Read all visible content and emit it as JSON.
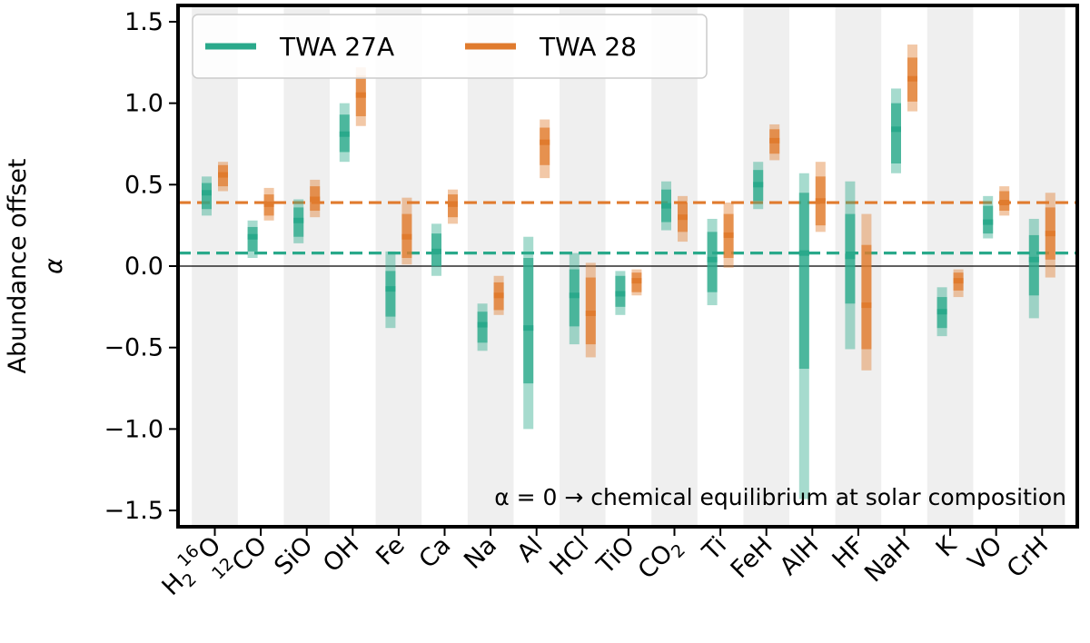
{
  "chart_data": {
    "type": "range-bar",
    "ylabel": "Abundance offset",
    "ylabel_symbol": "α",
    "ylim": [
      -1.6,
      1.6
    ],
    "yticks": [
      {
        "v": 1.5,
        "label": "1.5"
      },
      {
        "v": 1.0,
        "label": "1.0"
      },
      {
        "v": 0.5,
        "label": "0.5"
      },
      {
        "v": 0.0,
        "label": "0.0"
      },
      {
        "v": -0.5,
        "label": "−0.5"
      },
      {
        "v": -1.0,
        "label": "−1.0"
      },
      {
        "v": -1.5,
        "label": "−1.5"
      }
    ],
    "categories": [
      {
        "main": "H",
        "sub": "2",
        "sup": "16",
        "tail": "O"
      },
      {
        "main": "",
        "sub": "",
        "sup": "12",
        "tail": "CO"
      },
      {
        "main": "SiO"
      },
      {
        "main": "OH"
      },
      {
        "main": "Fe"
      },
      {
        "main": "Ca"
      },
      {
        "main": "Na"
      },
      {
        "main": "Al"
      },
      {
        "main": "HCl"
      },
      {
        "main": "TiO"
      },
      {
        "main": "CO",
        "sub": "2"
      },
      {
        "main": "Ti"
      },
      {
        "main": "FeH"
      },
      {
        "main": "AlH"
      },
      {
        "main": "HF"
      },
      {
        "main": "NaH"
      },
      {
        "main": "K"
      },
      {
        "main": "VO"
      },
      {
        "main": "CrH"
      }
    ],
    "series": [
      {
        "name": "TWA 27A",
        "color": "#2aa98b",
        "mean_line": 0.08,
        "ranges": [
          [
            0.31,
            0.35,
            0.45,
            0.51,
            0.55
          ],
          [
            0.05,
            0.09,
            0.18,
            0.24,
            0.28
          ],
          [
            0.14,
            0.18,
            0.28,
            0.36,
            0.41
          ],
          [
            0.64,
            0.7,
            0.81,
            0.93,
            1.0
          ],
          [
            -0.38,
            -0.31,
            -0.14,
            -0.03,
            0.09
          ],
          [
            -0.06,
            0.0,
            0.09,
            0.2,
            0.26
          ],
          [
            -0.52,
            -0.47,
            -0.36,
            -0.28,
            -0.23
          ],
          [
            -1.0,
            -0.72,
            -0.38,
            0.05,
            0.18
          ],
          [
            -0.48,
            -0.37,
            -0.18,
            -0.02,
            0.08
          ],
          [
            -0.3,
            -0.25,
            -0.17,
            -0.06,
            -0.03
          ],
          [
            0.22,
            0.27,
            0.37,
            0.47,
            0.52
          ],
          [
            -0.24,
            -0.16,
            0.04,
            0.21,
            0.29
          ],
          [
            0.35,
            0.4,
            0.5,
            0.59,
            0.64
          ],
          [
            -1.43,
            -0.63,
            0.08,
            0.45,
            0.57
          ],
          [
            -0.51,
            -0.23,
            0.06,
            0.32,
            0.52
          ],
          [
            0.57,
            0.63,
            0.84,
            1.0,
            1.09
          ],
          [
            -0.43,
            -0.38,
            -0.28,
            -0.19,
            -0.13
          ],
          [
            0.17,
            0.2,
            0.27,
            0.37,
            0.43
          ],
          [
            -0.32,
            -0.18,
            0.04,
            0.19,
            0.29
          ]
        ]
      },
      {
        "name": "TWA 28",
        "color": "#e07b2e",
        "mean_line": 0.39,
        "ranges": [
          [
            0.46,
            0.49,
            0.56,
            0.62,
            0.64
          ],
          [
            0.28,
            0.31,
            0.38,
            0.44,
            0.48
          ],
          [
            0.3,
            0.34,
            0.41,
            0.49,
            0.53
          ],
          [
            0.86,
            0.92,
            1.05,
            1.17,
            1.22
          ],
          [
            0.01,
            0.05,
            0.18,
            0.32,
            0.42
          ],
          [
            0.26,
            0.3,
            0.38,
            0.44,
            0.47
          ],
          [
            -0.3,
            -0.27,
            -0.18,
            -0.1,
            -0.06
          ],
          [
            0.54,
            0.62,
            0.76,
            0.85,
            0.9
          ],
          [
            -0.56,
            -0.48,
            -0.29,
            -0.07,
            0.02
          ],
          [
            -0.18,
            -0.16,
            -0.09,
            -0.04,
            -0.02
          ],
          [
            0.15,
            0.21,
            0.3,
            0.39,
            0.43
          ],
          [
            -0.01,
            0.05,
            0.19,
            0.32,
            0.39
          ],
          [
            0.65,
            0.69,
            0.77,
            0.84,
            0.87
          ],
          [
            0.21,
            0.25,
            0.4,
            0.55,
            0.64
          ],
          [
            -0.64,
            -0.51,
            -0.24,
            0.13,
            0.32
          ],
          [
            0.95,
            1.01,
            1.15,
            1.28,
            1.36
          ],
          [
            -0.19,
            -0.15,
            -0.09,
            -0.04,
            -0.02
          ],
          [
            0.31,
            0.34,
            0.39,
            0.46,
            0.49
          ],
          [
            -0.07,
            0.04,
            0.2,
            0.36,
            0.45
          ]
        ]
      }
    ],
    "zero_line": 0.0,
    "annotation": "α = 0 →  chemical equilibrium at solar composition",
    "legend_position": "top-left",
    "alternating_band_color": "#efefef"
  }
}
